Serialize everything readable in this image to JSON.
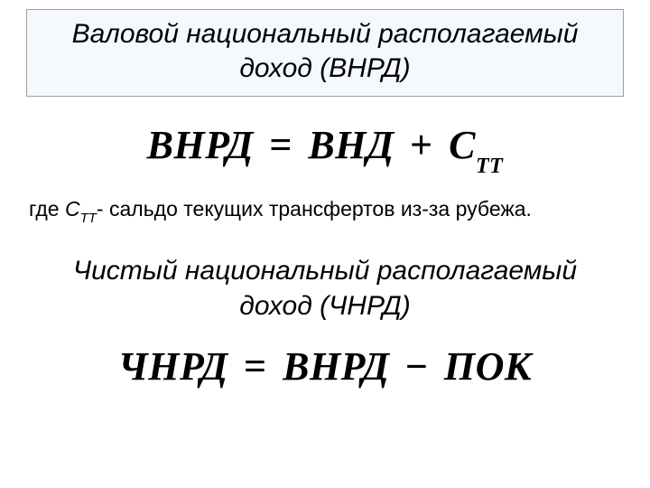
{
  "title_box": "Валовой национальный располагаемый доход (ВНРД)",
  "formula1": {
    "lhs": "ВНРД",
    "op1": "=",
    "rhs1": "ВНД",
    "op2": "+",
    "rhs2_base": "С",
    "rhs2_sub": "ТТ"
  },
  "where": {
    "prefix": "где ",
    "sym_base": "С",
    "sym_sub": "ТТ",
    "dash": "- ",
    "text": "сальдо текущих трансфертов из-за рубежа."
  },
  "subtitle": "Чистый национальный располагаемый доход (ЧНРД)",
  "formula2": {
    "lhs": "ЧНРД",
    "op1": "=",
    "rhs1": "ВНРД",
    "op2": "−",
    "rhs2": "ПОК"
  },
  "style": {
    "title_border_color": "#9aa0a6",
    "title_bg_color": "#f5f9fd",
    "text_color": "#000000",
    "background_color": "#ffffff",
    "title_fontsize": 30,
    "formula_fontsize": 44,
    "where_fontsize": 23,
    "subtitle_fontsize": 30
  }
}
